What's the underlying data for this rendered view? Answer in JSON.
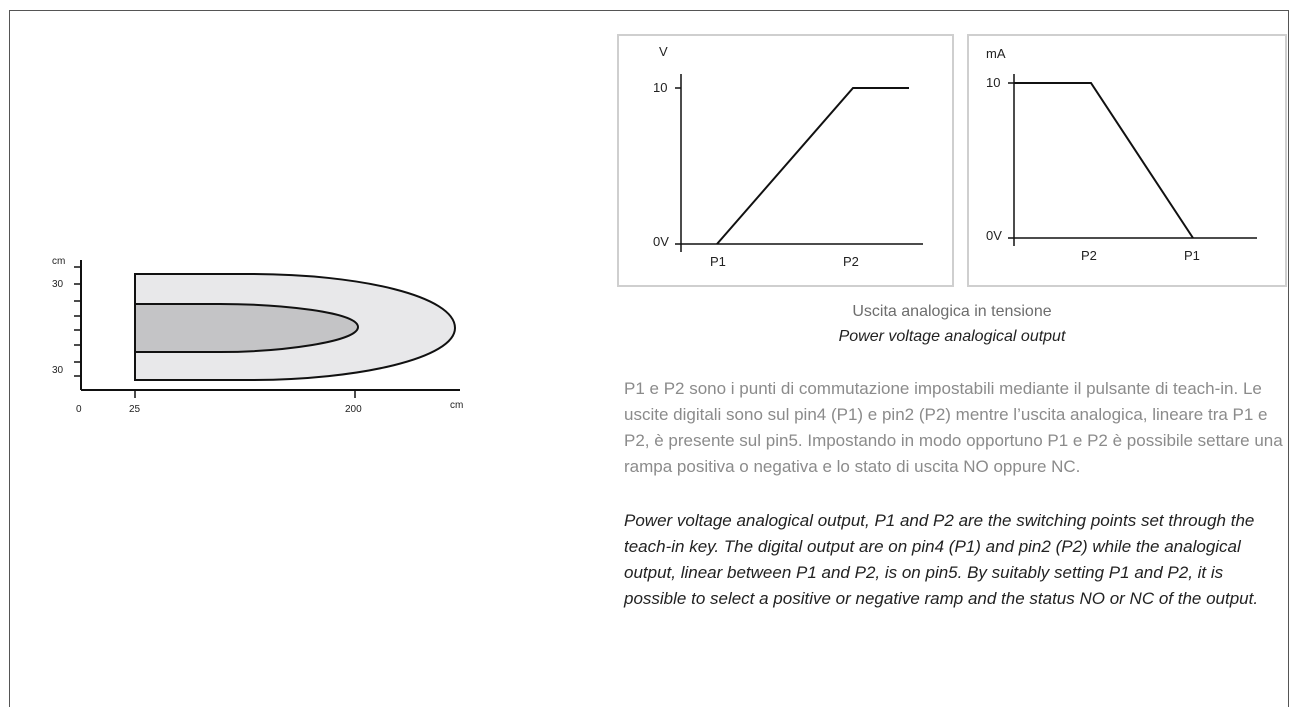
{
  "detection_diagram": {
    "y_unit": "cm",
    "y_tick_top": "30",
    "y_tick_bottom": "30",
    "x_unit": "cm",
    "x_ticks": [
      "0",
      "25",
      "200"
    ]
  },
  "voltage_graph": {
    "y_unit": "V",
    "y_max_label": "10",
    "y_zero_label": "0V",
    "x_labels": [
      "P1",
      "P2"
    ]
  },
  "current_graph": {
    "y_unit": "mA",
    "y_max_label": "10",
    "y_zero_label": "0V",
    "x_labels": [
      "P2",
      "P1"
    ]
  },
  "caption": {
    "italian": "Uscita analogica in tensione",
    "english": "Power voltage analogical output"
  },
  "description": {
    "italian": "P1 e P2 sono i punti di commutazione impostabili mediante il pulsante di teach-in. Le uscite digitali sono sul pin4 (P1) e pin2 (P2) mentre l’uscita analogica, lineare tra P1 e P2, è presente sul pin5. Impostando in modo opportuno P1 e P2 è possibile settare una rampa positiva o negativa e lo stato di uscita NO oppure NC.",
    "english": "Power voltage analogical output, P1 and P2 are the switching points set through the teach-in key. The digital output are on pin4 (P1) and pin2 (P2) while the analogical output, linear between P1 and P2, is on pin5. By suitably setting P1 and P2, it is possible to select a positive or negative ramp and the status NO or NC of the output."
  },
  "colors": {
    "outer_lobe": "#e8e8ea",
    "inner_lobe": "#c4c4c6",
    "stroke": "#111111",
    "box_border": "#cfcfcf",
    "caption_gray": "#6d6d6d",
    "paragraph_gray": "#8b8b8b"
  }
}
